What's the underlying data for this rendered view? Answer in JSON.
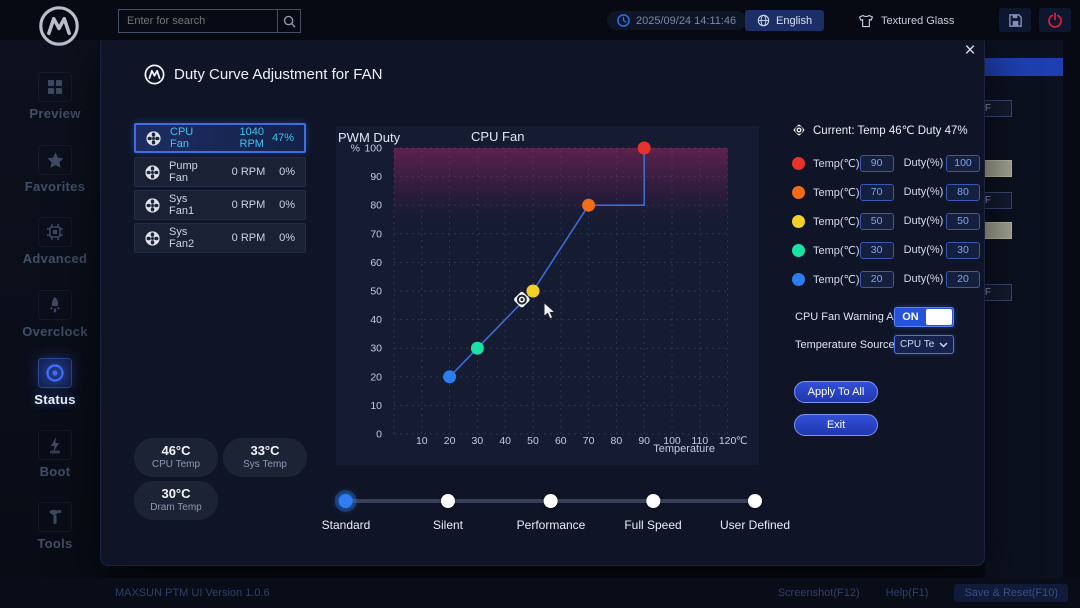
{
  "topbar": {
    "search_placeholder": "Enter for search",
    "datetime": "2025/09/24 14:11:46",
    "language": "English",
    "theme": "Textured Glass"
  },
  "sidebar": {
    "items": [
      {
        "label": "Preview"
      },
      {
        "label": "Favorites"
      },
      {
        "label": "Advanced"
      },
      {
        "label": "Overclock"
      },
      {
        "label": "Status"
      },
      {
        "label": "Boot"
      },
      {
        "label": "Tools"
      }
    ],
    "active_item": "Status"
  },
  "background_panel": {
    "off_label_1": "OFF",
    "off_label_2": "OFF",
    "off_label_3": "OFF"
  },
  "dialog": {
    "title": "Duty Curve Adjustment for FAN",
    "close_glyph": "×",
    "fans": [
      {
        "name": "CPU Fan",
        "rpm": "1040 RPM",
        "duty": "47%"
      },
      {
        "name": "Pump Fan",
        "rpm": "0 RPM",
        "duty": "0%"
      },
      {
        "name": "Sys Fan1",
        "rpm": "0 RPM",
        "duty": "0%"
      },
      {
        "name": "Sys Fan2",
        "rpm": "0 RPM",
        "duty": "0%"
      }
    ],
    "selected_fan": "CPU Fan",
    "temps": [
      {
        "value": "46°C",
        "label": "CPU Temp"
      },
      {
        "value": "33°C",
        "label": "Sys Temp"
      },
      {
        "value": "30°C",
        "label": "Dram Temp"
      }
    ],
    "curve_editor": {
      "current_label": "Current: Temp 46℃  Duty 47%",
      "temp_field_label": "Temp(℃)",
      "duty_field_label": "Duty(%)",
      "rows": [
        {
          "color": "#e8332a",
          "temp": "90",
          "duty": "100"
        },
        {
          "color": "#f06c18",
          "temp": "70",
          "duty": "80"
        },
        {
          "color": "#f2d027",
          "temp": "50",
          "duty": "50"
        },
        {
          "color": "#1be2a4",
          "temp": "30",
          "duty": "30"
        },
        {
          "color": "#2b7df0",
          "temp": "20",
          "duty": "20"
        }
      ],
      "warning_label": "CPU Fan Warning Alert",
      "warning_value": "ON",
      "source_label": "Temperature Source",
      "source_value": "CPU Tem",
      "apply_label": "Apply To All",
      "exit_label": "Exit"
    },
    "modes": [
      "Standard",
      "Silent",
      "Performance",
      "Full Speed",
      "User Defined"
    ],
    "selected_mode": "Standard"
  },
  "chart_data": {
    "type": "line",
    "title": "CPU Fan",
    "ylabel": "PWM Duty",
    "ylabel_unit": "%",
    "xlabel": "Temperature",
    "x_unit": "℃",
    "xlim": [
      0,
      120
    ],
    "ylim": [
      0,
      100
    ],
    "x_ticks": [
      10,
      20,
      30,
      40,
      50,
      60,
      70,
      80,
      90,
      100,
      110,
      120
    ],
    "y_ticks": [
      0,
      10,
      20,
      30,
      40,
      50,
      60,
      70,
      80,
      90,
      100
    ],
    "grid": true,
    "points": [
      {
        "x": 20,
        "y": 20,
        "color": "#2b7df0"
      },
      {
        "x": 30,
        "y": 30,
        "color": "#1be2a4"
      },
      {
        "x": 50,
        "y": 50,
        "color": "#f2d027"
      },
      {
        "x": 70,
        "y": 80,
        "color": "#f06c18"
      },
      {
        "x": 90,
        "y": 100,
        "color": "#e8332a"
      }
    ],
    "line_path": [
      [
        20,
        20
      ],
      [
        30,
        30
      ],
      [
        50,
        50
      ],
      [
        70,
        80
      ],
      [
        90,
        80
      ],
      [
        90,
        100
      ]
    ],
    "current_point": {
      "x": 46,
      "y": 47
    },
    "warning_zone": {
      "from": 73,
      "to": 100
    }
  },
  "footer": {
    "version": "MAXSUN PTM UI Version 1.0.6",
    "screenshot": "Screenshot(F12)",
    "help": "Help(F1)",
    "save": "Save & Reset(F10)"
  }
}
